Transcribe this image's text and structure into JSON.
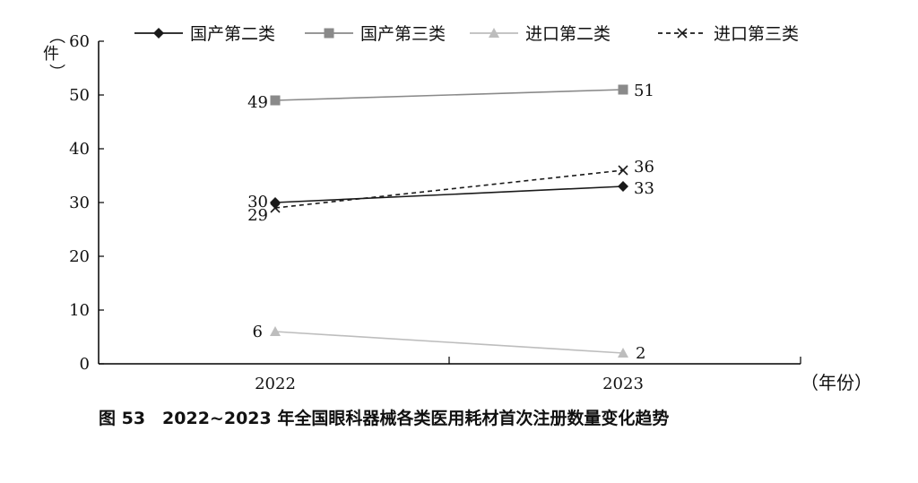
{
  "caption": "图 53　2022~2023 年全国眼科器械各类医用耗材首次注册数量变化趋势",
  "chart_data": {
    "type": "line",
    "categories": [
      "2022",
      "2023"
    ],
    "ylabel": "（件）",
    "xlabel": "（年份）",
    "ylim": [
      0,
      60
    ],
    "yticks": [
      0,
      10,
      20,
      30,
      40,
      50,
      60
    ],
    "legend_position": "top",
    "series": [
      {
        "name": "国产第二类",
        "values": [
          30,
          33
        ],
        "marker": "diamond",
        "color": "#1a1a1a",
        "dash": "solid"
      },
      {
        "name": "国产第三类",
        "values": [
          49,
          51
        ],
        "marker": "square",
        "color": "#8a8a8a",
        "dash": "solid"
      },
      {
        "name": "进口第二类",
        "values": [
          6,
          2
        ],
        "marker": "triangle",
        "color": "#bdbdbd",
        "dash": "solid"
      },
      {
        "name": "进口第三类",
        "values": [
          29,
          36
        ],
        "marker": "x",
        "color": "#1a1a1a",
        "dash": "dashed"
      }
    ]
  }
}
